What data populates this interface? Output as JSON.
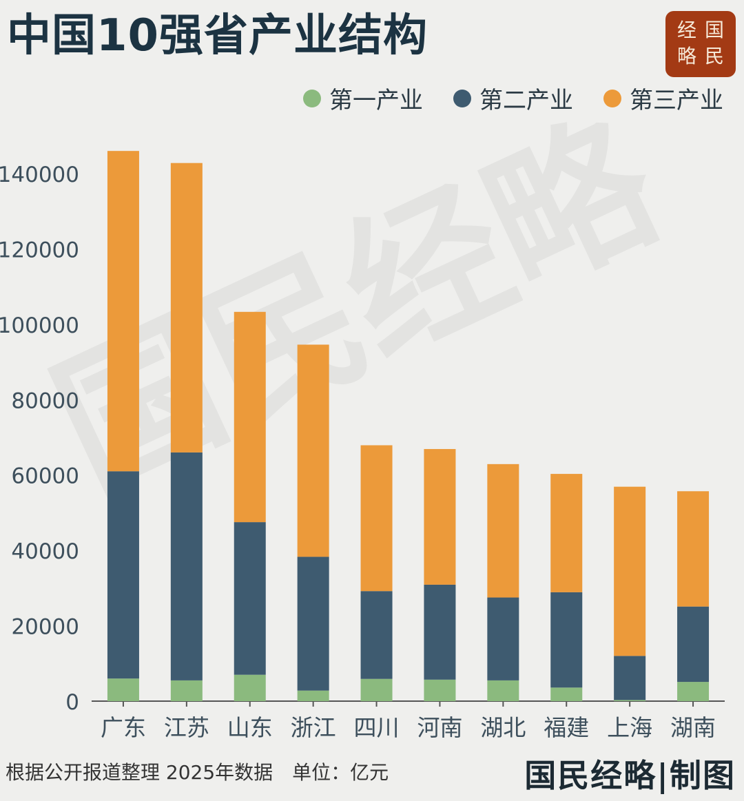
{
  "title": "中国10强省产业结构",
  "seal": [
    "经",
    "国",
    "略",
    "民"
  ],
  "watermark": "国民经略",
  "legend": [
    {
      "label": "第一产业",
      "color": "#8bba7e"
    },
    {
      "label": "第二产业",
      "color": "#3e5b70"
    },
    {
      "label": "第三产业",
      "color": "#ec9a3a"
    }
  ],
  "footer": {
    "note": "根据公开报道整理 2025年数据　单位：亿元",
    "brand": "国民经略|制图"
  },
  "chart_data": {
    "type": "bar",
    "stacked": true,
    "categories": [
      "广东",
      "江苏",
      "山东",
      "浙江",
      "四川",
      "河南",
      "湖北",
      "福建",
      "上海",
      "湖南"
    ],
    "series": [
      {
        "name": "第一产业",
        "color": "#8bba7e",
        "values": [
          6000,
          5500,
          7000,
          2800,
          5900,
          5700,
          5500,
          3600,
          300,
          5100
        ]
      },
      {
        "name": "第二产业",
        "color": "#3e5b70",
        "values": [
          55000,
          60500,
          40500,
          35500,
          23300,
          25200,
          22000,
          25300,
          11700,
          20000
        ]
      },
      {
        "name": "第三产业",
        "color": "#ec9a3a",
        "values": [
          85000,
          76800,
          55800,
          56300,
          38700,
          36000,
          35400,
          31400,
          44900,
          30600
        ]
      }
    ],
    "ylim": [
      0,
      140000
    ],
    "yticks": [
      "0",
      "20000",
      "40000",
      "60000",
      "80000",
      "100000",
      "120000",
      "140000"
    ],
    "grid": false
  }
}
